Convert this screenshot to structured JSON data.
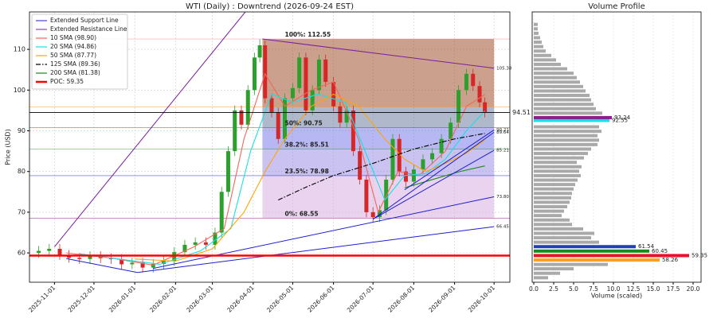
{
  "chart_data": [
    {
      "type": "candlestick",
      "title": "WTI (Daily) : Downtrend (2026-09-24 EST)",
      "y_label": "Price (USD)",
      "x": [
        "2025-10-20",
        "2025-10-28",
        "2025-11-05",
        "2025-11-12",
        "2025-11-20",
        "2025-11-28",
        "2025-12-06",
        "2025-12-14",
        "2025-12-22",
        "2025-12-30",
        "2026-01-07",
        "2026-01-15",
        "2026-01-23",
        "2026-01-31",
        "2026-02-08",
        "2026-02-16",
        "2026-02-24",
        "2026-03-03",
        "2026-03-08",
        "2026-03-13",
        "2026-03-18",
        "2026-03-23",
        "2026-03-28",
        "2026-04-02",
        "2026-04-06",
        "2026-04-10",
        "2026-04-15",
        "2026-04-20",
        "2026-04-25",
        "2026-05-01",
        "2026-05-06",
        "2026-05-11",
        "2026-05-16",
        "2026-05-21",
        "2026-05-26",
        "2026-06-01",
        "2026-06-06",
        "2026-06-11",
        "2026-06-16",
        "2026-06-21",
        "2026-06-26",
        "2026-07-01",
        "2026-07-06",
        "2026-07-11",
        "2026-07-16",
        "2026-07-21",
        "2026-07-26",
        "2026-08-01",
        "2026-08-08",
        "2026-08-15",
        "2026-08-22",
        "2026-08-29",
        "2026-09-04",
        "2026-09-10",
        "2026-09-15",
        "2026-09-20",
        "2026-09-24"
      ],
      "open": [
        60.0,
        60.5,
        61.0,
        59.5,
        58.8,
        58.5,
        59.2,
        58.7,
        58.5,
        57.2,
        57.6,
        56.4,
        57.3,
        58.0,
        60.2,
        62.0,
        62.6,
        62.0,
        65.0,
        75.0,
        85.0,
        95.0,
        91.5,
        100.0,
        108.0,
        111.0,
        98.0,
        94.5,
        88.0,
        98.0,
        100.5,
        108.0,
        95.0,
        100.0,
        107.5,
        102.0,
        96.0,
        92.0,
        95.0,
        85.0,
        78.0,
        70.0,
        68.8,
        70.5,
        78.0,
        88.0,
        80.0,
        77.5,
        80.5,
        83.0,
        84.5,
        88.0,
        92.0,
        100.0,
        104.0,
        101.0,
        97.0
      ],
      "high": [
        61.7,
        62.2,
        62.2,
        60.7,
        60.0,
        60.4,
        60.4,
        59.9,
        59.7,
        58.8,
        58.8,
        58.5,
        59.2,
        61.4,
        63.2,
        63.8,
        63.8,
        66.2,
        76.2,
        86.2,
        96.2,
        96.2,
        101.2,
        109.2,
        112.5,
        112.2,
        99.2,
        95.7,
        99.2,
        101.7,
        109.2,
        109.2,
        101.2,
        108.7,
        108.7,
        103.2,
        97.2,
        96.2,
        96.2,
        86.2,
        79.2,
        71.2,
        71.7,
        79.2,
        89.2,
        89.2,
        81.2,
        81.7,
        84.2,
        85.7,
        89.2,
        93.2,
        101.2,
        105.2,
        105.2,
        102.2,
        98.2
      ],
      "low": [
        58.8,
        59.3,
        58.3,
        57.6,
        57.3,
        57.3,
        57.5,
        57.3,
        56.0,
        56.0,
        55.2,
        55.2,
        56.1,
        56.8,
        59.0,
        60.8,
        60.8,
        60.8,
        63.8,
        73.8,
        83.8,
        90.3,
        90.3,
        98.8,
        106.8,
        96.8,
        93.3,
        86.8,
        86.8,
        96.8,
        99.3,
        93.8,
        93.8,
        98.8,
        100.8,
        94.8,
        90.8,
        90.8,
        83.8,
        76.8,
        68.8,
        67.6,
        67.6,
        69.3,
        76.8,
        78.8,
        76.3,
        76.3,
        79.3,
        81.8,
        83.3,
        86.8,
        90.8,
        98.8,
        99.8,
        95.8,
        93.3
      ],
      "close": [
        60.5,
        61.0,
        59.5,
        58.8,
        58.5,
        59.2,
        58.7,
        58.5,
        57.2,
        57.6,
        56.4,
        57.3,
        58.0,
        60.2,
        62.0,
        62.6,
        62.0,
        65.0,
        75.0,
        85.0,
        95.0,
        91.5,
        100.0,
        108.0,
        111.0,
        98.0,
        94.5,
        88.0,
        98.0,
        100.5,
        108.0,
        95.0,
        100.0,
        107.5,
        102.0,
        96.0,
        92.0,
        95.0,
        85.0,
        78.0,
        70.0,
        68.8,
        70.5,
        78.0,
        88.0,
        80.0,
        77.5,
        80.5,
        83.0,
        84.5,
        88.0,
        92.0,
        100.0,
        104.0,
        101.0,
        97.0,
        94.5
      ],
      "up_color": "#2ca02c",
      "down_color": "#d62728",
      "xlim": [
        "2025-10-13",
        "2026-10-13"
      ],
      "ylim": [
        52.8,
        119.2
      ],
      "xticks": [
        "2025-11-01",
        "2025-12-01",
        "2026-01-01",
        "2026-02-01",
        "2026-03-01",
        "2026-04-01",
        "2026-05-01",
        "2026-06-01",
        "2026-07-01",
        "2026-08-01",
        "2026-09-01",
        "2026-10-01"
      ],
      "yticks": [
        60,
        70,
        80,
        90,
        100,
        110
      ],
      "grid": true,
      "legend": "upper left",
      "fib": {
        "x": [
          "2026-04-08",
          "2026-10-01"
        ],
        "levels": [
          {
            "value": 112.55,
            "label": "100%: 112.55",
            "color": "#f08080",
            "fill": "#a0522d"
          },
          {
            "value": 95.9,
            "label": null,
            "color": "#ff8c00",
            "fill": "#6f7fa0"
          },
          {
            "value": 90.75,
            "label": "50%: 90.75",
            "color": "#ff0000",
            "fill": "#7b7bea"
          },
          {
            "value": 85.51,
            "label": "38.2%: 85.51",
            "color": "#008000",
            "fill": "#9f8fe6"
          },
          {
            "value": 78.98,
            "label": "23.5%: 78.98",
            "color": "#0000ff",
            "fill": "#d8aee0"
          },
          {
            "value": 68.55,
            "label": "0%: 68.55",
            "color": "#800080",
            "fill": null
          }
        ]
      },
      "support": {
        "name": "Extended Support Line",
        "color": "#1f1fcf",
        "segments": [
          {
            "x": [
              "2025-11-10",
              "2026-01-03"
            ],
            "values": [
              58.6,
              55.2
            ],
            "value_labels": [
              null,
              null
            ]
          },
          {
            "x": [
              "2026-01-03",
              "2026-10-01"
            ],
            "values": [
              55.2,
              66.45
            ],
            "value_labels": [
              null,
              "66.45"
            ]
          },
          {
            "x": [
              "2026-01-15",
              "2026-10-01"
            ],
            "values": [
              56.2,
              73.8
            ],
            "value_labels": [
              null,
              "73.80"
            ]
          },
          {
            "x": [
              "2026-07-01",
              "2026-10-01"
            ],
            "values": [
              68.3,
              85.21
            ],
            "value_labels": [
              null,
              "85.21"
            ]
          },
          {
            "x": [
              "2026-07-01",
              "2026-10-01"
            ],
            "values": [
              68.3,
              89.64
            ],
            "value_labels": [
              null,
              "89.64"
            ]
          },
          {
            "x": [
              "2026-07-25",
              "2026-10-01"
            ],
            "values": [
              75.5,
              90.21
            ],
            "value_labels": [
              null,
              "90.21"
            ]
          }
        ]
      },
      "resistance": {
        "name": "Extended Resistance Line",
        "color": "#7b1fa2",
        "segments": [
          {
            "x": [
              "2025-11-01",
              "2026-03-26"
            ],
            "values": [
              61.5,
              119.2
            ],
            "value_labels": [
              null,
              null
            ]
          },
          {
            "x": [
              "2026-04-08",
              "2026-10-01"
            ],
            "values": [
              112.55,
              105.38
            ],
            "value_labels": [
              null,
              "105.38"
            ]
          }
        ]
      },
      "series": [
        {
          "name": "10 SMA (98.90)",
          "color": "#f4665a",
          "dash": null,
          "x": [
            "2025-11-10",
            "2025-12-15",
            "2026-01-15",
            "2026-02-15",
            "2026-03-10",
            "2026-03-25",
            "2026-04-10",
            "2026-04-25",
            "2026-05-15",
            "2026-06-01",
            "2026-06-20",
            "2026-07-05",
            "2026-07-20",
            "2026-08-05",
            "2026-08-25",
            "2026-09-10",
            "2026-09-24"
          ],
          "values": [
            60,
            58.7,
            57,
            61.5,
            66,
            88,
            104,
            96,
            100,
            102,
            88,
            70,
            80,
            79,
            85,
            96,
            98.9
          ]
        },
        {
          "name": "20 SMA (94.86)",
          "color": "#17e0e6",
          "dash": null,
          "x": [
            "2025-11-20",
            "2025-12-20",
            "2026-01-20",
            "2026-02-20",
            "2026-03-15",
            "2026-03-30",
            "2026-04-15",
            "2026-05-01",
            "2026-05-20",
            "2026-06-10",
            "2026-06-25",
            "2026-07-10",
            "2026-07-25",
            "2026-08-10",
            "2026-08-25",
            "2026-09-10",
            "2026-09-24"
          ],
          "values": [
            59.8,
            58.5,
            57.2,
            60.5,
            66,
            85,
            99,
            97,
            99,
            97,
            85,
            73,
            79,
            79.5,
            83,
            90,
            94.86
          ]
        },
        {
          "name": "50 SMA (87.77)",
          "color": "#ffa500",
          "dash": null,
          "x": [
            "2026-01-01",
            "2026-02-01",
            "2026-03-01",
            "2026-03-25",
            "2026-04-10",
            "2026-04-25",
            "2026-05-15",
            "2026-06-01",
            "2026-06-20",
            "2026-07-10",
            "2026-07-25",
            "2026-08-10",
            "2026-08-25",
            "2026-09-10",
            "2026-09-24"
          ],
          "values": [
            58.5,
            58,
            61,
            70,
            80,
            88,
            96,
            99,
            96,
            88,
            83,
            80,
            82,
            84.5,
            87.77
          ]
        },
        {
          "name": "125 SMA (89.36)",
          "color": "#000000",
          "dash": "6 2 1.5 2",
          "x": [
            "2026-04-20",
            "2026-05-10",
            "2026-06-01",
            "2026-07-01",
            "2026-08-01",
            "2026-09-01",
            "2026-09-24"
          ],
          "values": [
            73,
            76,
            79,
            82,
            85.5,
            88,
            89.36
          ]
        },
        {
          "name": "200 SMA (81.38)",
          "color": "#1a8a1a",
          "dash": null,
          "x": [
            "2026-07-25",
            "2026-08-15",
            "2026-09-05",
            "2026-09-24"
          ],
          "values": [
            76,
            78,
            80,
            81.38
          ]
        }
      ],
      "current": {
        "value": 94.51,
        "color": "#000000"
      },
      "poc": {
        "name": "POC: 59.35",
        "value": 59.35,
        "color": "#ff0000"
      }
    },
    {
      "type": "volume_profile",
      "title": "Volume Profile",
      "x_label": "Volume (scaled)",
      "levels": [
        53.9,
        55.0,
        56.1,
        57.17,
        58.26,
        59.35,
        60.45,
        61.54,
        62.63,
        63.72,
        64.81,
        65.9,
        66.99,
        68.08,
        69.17,
        70.26,
        71.35,
        72.44,
        73.53,
        74.62,
        75.71,
        76.8,
        77.89,
        78.98,
        80.07,
        81.16,
        82.25,
        83.34,
        84.43,
        85.52,
        86.61,
        87.7,
        88.79,
        89.88,
        90.97,
        92.55,
        93.24,
        94.33,
        95.42,
        96.51,
        97.6,
        98.69,
        99.78,
        100.87,
        101.96,
        103.05,
        104.14,
        105.23,
        106.32,
        107.41,
        108.5,
        109.59,
        110.68,
        111.77,
        112.86,
        113.95,
        115.04,
        116.13
      ],
      "values": [
        1.8,
        3.3,
        5.0,
        9.3,
        15.8,
        19.5,
        14.5,
        12.8,
        8.2,
        7.2,
        7.6,
        6.2,
        4.8,
        4.5,
        3.5,
        3.8,
        4.2,
        4.5,
        4.7,
        4.8,
        5.0,
        5.2,
        5.5,
        5.9,
        5.7,
        6.0,
        5.4,
        6.3,
        6.8,
        7.2,
        8.0,
        8.2,
        8.0,
        8.5,
        8.2,
        9.5,
        9.8,
        8.6,
        7.8,
        7.5,
        7.2,
        7.0,
        6.5,
        6.2,
        5.8,
        5.4,
        5.0,
        4.2,
        3.4,
        2.8,
        2.2,
        1.5,
        1.2,
        1.0,
        0.8,
        0.6,
        0.5,
        0.5
      ],
      "colors": [
        "#a9a9a9",
        "#a9a9a9",
        "#a9a9a9",
        "#a9a9a9",
        "#ff9f1c",
        "#e8112d",
        "#1a8a1a",
        "#1f3fbf",
        "#a9a9a9",
        "#a9a9a9",
        "#a9a9a9",
        "#a9a9a9",
        "#a9a9a9",
        "#a9a9a9",
        "#a9a9a9",
        "#a9a9a9",
        "#a9a9a9",
        "#a9a9a9",
        "#a9a9a9",
        "#a9a9a9",
        "#a9a9a9",
        "#a9a9a9",
        "#a9a9a9",
        "#a9a9a9",
        "#a9a9a9",
        "#a9a9a9",
        "#a9a9a9",
        "#a9a9a9",
        "#a9a9a9",
        "#a9a9a9",
        "#a9a9a9",
        "#a9a9a9",
        "#a9a9a9",
        "#a9a9a9",
        "#a9a9a9",
        "#17e0e6",
        "#8b1f8b",
        "#a9a9a9",
        "#a9a9a9",
        "#a9a9a9",
        "#a9a9a9",
        "#a9a9a9",
        "#a9a9a9",
        "#a9a9a9",
        "#a9a9a9",
        "#a9a9a9",
        "#a9a9a9",
        "#a9a9a9",
        "#a9a9a9",
        "#a9a9a9",
        "#a9a9a9",
        "#a9a9a9",
        "#a9a9a9",
        "#a9a9a9",
        "#a9a9a9",
        "#a9a9a9",
        "#a9a9a9",
        "#a9a9a9"
      ],
      "bar_color": "#a9a9a9",
      "xlim": [
        -0.2,
        21
      ],
      "ylim": [
        52.8,
        119.2
      ],
      "xticks": [
        {
          "value": 0,
          "label": "0.0"
        },
        {
          "value": 2.5,
          "label": "2.5"
        },
        {
          "value": 5,
          "label": "5.0"
        },
        {
          "value": 7.5,
          "label": "7.5"
        },
        {
          "value": 10,
          "label": "10.0"
        },
        {
          "value": 12.5,
          "label": "12.5"
        },
        {
          "value": 15,
          "label": "15.0"
        },
        {
          "value": 17.5,
          "label": "17.5"
        },
        {
          "value": 20,
          "label": "20.0"
        }
      ],
      "grid": true
    }
  ]
}
